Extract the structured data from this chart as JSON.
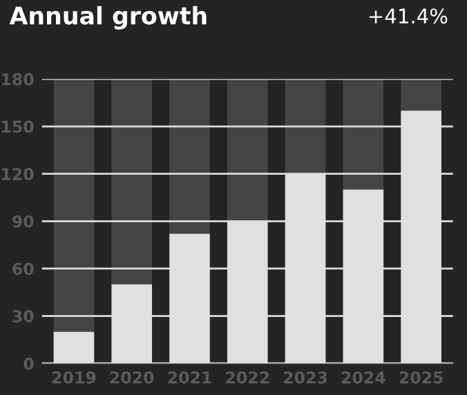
{
  "chart_data": {
    "type": "bar",
    "title": "Annual growth",
    "annotations": [
      "+41.4%"
    ],
    "categories": [
      "2019",
      "2020",
      "2021",
      "2022",
      "2023",
      "2024",
      "2025"
    ],
    "stacked": true,
    "series": [
      {
        "color": "#e0e0e0",
        "values": [
          20,
          50,
          82,
          90,
          120,
          110,
          160
        ]
      },
      {
        "color": "#444444",
        "values": [
          160,
          130,
          98,
          90,
          60,
          70,
          20
        ]
      }
    ],
    "ylim": [
      0,
      180
    ],
    "yticks": [
      0,
      30,
      60,
      90,
      120,
      150,
      180
    ],
    "grid": "y"
  }
}
